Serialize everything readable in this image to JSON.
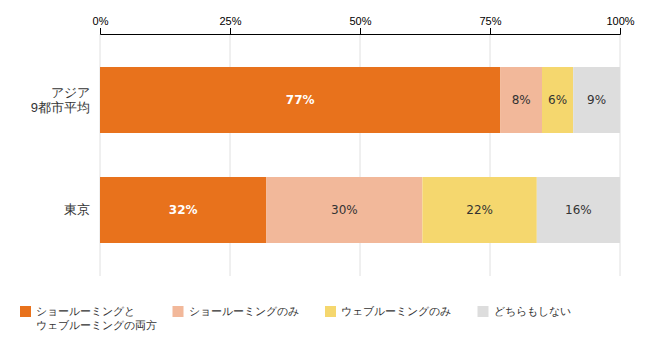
{
  "chart_data": {
    "type": "bar",
    "orientation": "horizontal",
    "stacked": true,
    "data_labels": true,
    "categories": [
      "アジア\n9都市平均",
      "東京"
    ],
    "series": [
      {
        "name": "ショールーミングと\nウェブルーミングの両方",
        "color": "#E8721C",
        "values": [
          77,
          32
        ],
        "value_labels": [
          "77%",
          "32%"
        ]
      },
      {
        "name": "ショールーミングのみ",
        "color": "#F2B89A",
        "values": [
          8,
          30
        ],
        "value_labels": [
          "8%",
          "30%"
        ]
      },
      {
        "name": "ウェブルーミングのみ",
        "color": "#F5D76E",
        "values": [
          6,
          22
        ],
        "value_labels": [
          "6%",
          "22%"
        ]
      },
      {
        "name": "どちらもしない",
        "color": "#DDDDDD",
        "values": [
          9,
          16
        ],
        "value_labels": [
          "9%",
          "16%"
        ]
      }
    ],
    "xlim": [
      0,
      100
    ],
    "xticks": [
      {
        "value": 0,
        "label": "0%"
      },
      {
        "value": 25,
        "label": "25%"
      },
      {
        "value": 50,
        "label": "50%"
      },
      {
        "value": 75,
        "label": "75%"
      },
      {
        "value": 100,
        "label": "100%"
      }
    ],
    "grid": true,
    "legend": "bottom"
  }
}
